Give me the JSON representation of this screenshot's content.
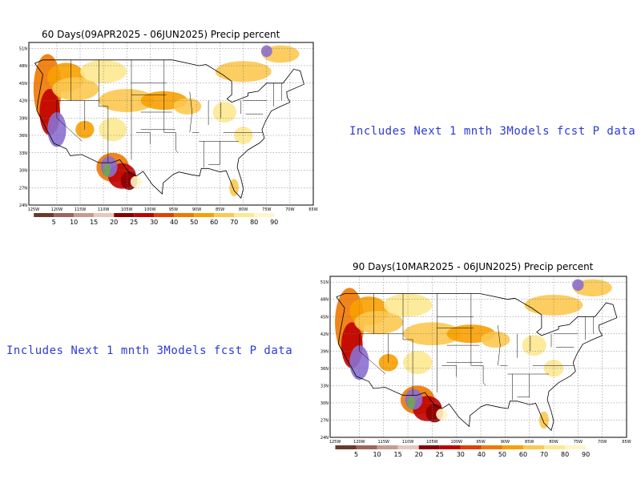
{
  "panels": [
    {
      "title": "60 Days(09APR2025 - 06JUN2025) Precip percent",
      "note": "Includes Next 1 mnth 3Models fcst P data"
    },
    {
      "title": "90 Days(10MAR2025 - 06JUN2025) Precip percent",
      "note": "Includes Next 1 mnth 3Models fcst P data"
    }
  ],
  "lat_labels": [
    "51N",
    "48N",
    "45N",
    "42N",
    "39N",
    "36N",
    "33N",
    "30N",
    "27N",
    "24N"
  ],
  "lon_labels": [
    "125W",
    "120W",
    "115W",
    "110W",
    "105W",
    "100W",
    "95W",
    "90W",
    "85W",
    "80W",
    "75W",
    "70W",
    "65W"
  ],
  "legend": {
    "labels": [
      "5",
      "10",
      "15",
      "20",
      "25",
      "30",
      "40",
      "50",
      "60",
      "70",
      "80",
      "90"
    ],
    "colors": [
      "#6b3a2a",
      "#a0655a",
      "#c89a90",
      "#e6c8c0",
      "#8b0000",
      "#c00000",
      "#e04000",
      "#f07800",
      "#f8a000",
      "#fcc850",
      "#fde890",
      "#fff5c8"
    ]
  }
}
